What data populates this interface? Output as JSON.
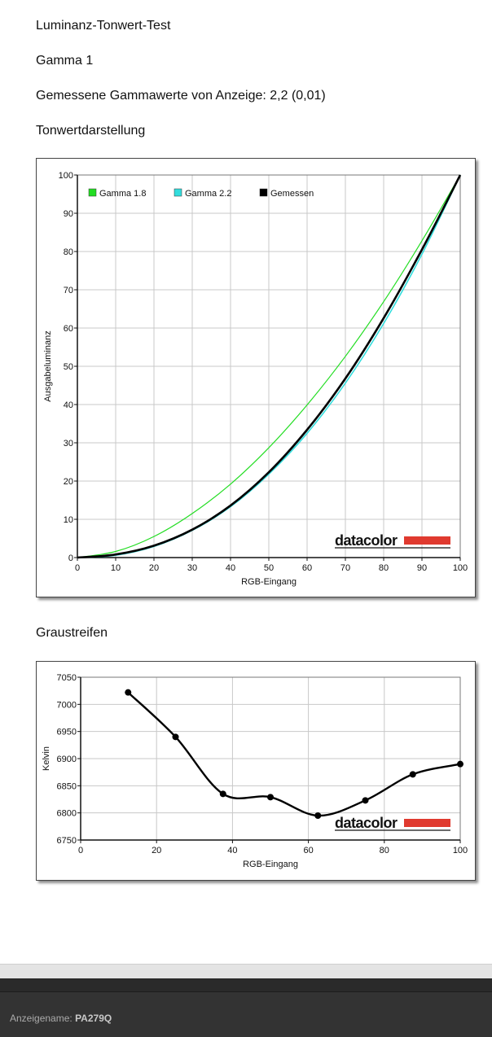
{
  "report": {
    "title": "Luminanz-Tonwert-Test",
    "gamma": "Gamma 1",
    "measured": "Gemessene Gammawerte von Anzeige: 2,2 (0,01)",
    "tone_heading": "Tonwertdarstellung",
    "gray_heading": "Graustreifen"
  },
  "footer": {
    "label": "Anzeigename:",
    "value": "PA279Q"
  },
  "logo": {
    "text": "datacolor"
  },
  "chart_data": [
    {
      "type": "line",
      "title": "",
      "xlabel": "RGB-Eingang",
      "ylabel": "Ausgabeluminanz",
      "xlim": [
        0,
        100
      ],
      "ylim": [
        0,
        100
      ],
      "xticks": [
        0,
        10,
        20,
        30,
        40,
        50,
        60,
        70,
        80,
        90,
        100
      ],
      "yticks": [
        0,
        10,
        20,
        30,
        40,
        50,
        60,
        70,
        80,
        90,
        100
      ],
      "grid": true,
      "legend": "top-left",
      "series": [
        {
          "name": "Gamma 1.8",
          "color": "#22dd22",
          "x": [
            0,
            10,
            20,
            30,
            40,
            50,
            60,
            70,
            80,
            90,
            100
          ],
          "y": [
            0,
            1.6,
            5.5,
            11.5,
            19.2,
            28.7,
            39.9,
            52.6,
            66.9,
            82.8,
            100
          ]
        },
        {
          "name": "Gamma 2.2",
          "color": "#33dddd",
          "x": [
            0,
            10,
            20,
            30,
            40,
            50,
            60,
            70,
            80,
            90,
            100
          ],
          "y": [
            0,
            0.6,
            2.9,
            7.1,
            13.3,
            21.8,
            32.5,
            45.6,
            61.2,
            79.3,
            100
          ]
        },
        {
          "name": "Gemessen",
          "color": "#000000",
          "x": [
            0,
            10,
            20,
            30,
            40,
            50,
            60,
            70,
            80,
            90,
            100
          ],
          "y": [
            0,
            0.8,
            3.1,
            7.3,
            13.6,
            22.3,
            33.4,
            46.8,
            62.6,
            80.5,
            100
          ]
        }
      ]
    },
    {
      "type": "line",
      "title": "",
      "xlabel": "RGB-Eingang",
      "ylabel": "Kelvin",
      "xlim": [
        0,
        100
      ],
      "ylim": [
        6750,
        7050
      ],
      "xticks": [
        0,
        20,
        40,
        60,
        80,
        100
      ],
      "yticks": [
        6750,
        6800,
        6850,
        6900,
        6950,
        7000,
        7050
      ],
      "grid": true,
      "series": [
        {
          "color": "#000000",
          "x": [
            12.5,
            25,
            37.5,
            50,
            62.5,
            75,
            87.5,
            100
          ],
          "y": [
            7022,
            6940,
            6835,
            6829,
            6795,
            6823,
            6871,
            6890
          ]
        }
      ]
    }
  ]
}
